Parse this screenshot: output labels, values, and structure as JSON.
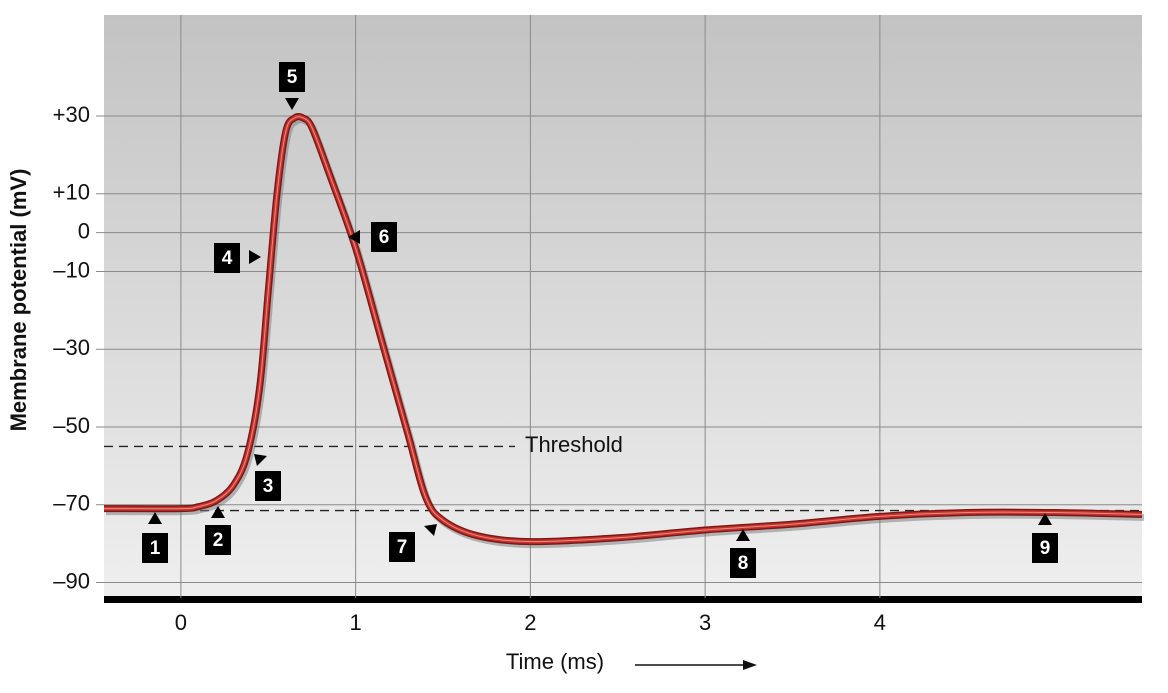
{
  "chart_data": {
    "type": "line",
    "x_label": "Time (ms)",
    "y_label": "Membrane potential (mV)",
    "x": [
      -0.44,
      0,
      0.1,
      0.2,
      0.3,
      0.38,
      0.45,
      0.5,
      0.55,
      0.6,
      0.65,
      0.7,
      0.75,
      0.85,
      1.0,
      1.15,
      1.3,
      1.4,
      1.5,
      1.7,
      2.0,
      2.5,
      3.0,
      3.5,
      4.0,
      4.5,
      5.0,
      5.5
    ],
    "values": [
      -71,
      -71,
      -70.5,
      -69,
      -65,
      -57,
      -40,
      -15,
      10,
      26,
      29.5,
      29.5,
      27,
      15,
      -4,
      -28,
      -52,
      -68,
      -74,
      -78,
      -79.5,
      -78.5,
      -76.5,
      -75,
      -73,
      -72,
      -72,
      -72.5
    ],
    "color": "#c8332e",
    "xlim": [
      -0.44,
      5.5
    ],
    "ylim": [
      -94,
      56
    ],
    "xticks": [
      0,
      1,
      2,
      3,
      4
    ],
    "yticks": [
      {
        "value": 30,
        "label": "+30"
      },
      {
        "value": 10,
        "label": "+10"
      },
      0,
      {
        "value": -10,
        "label": "–10"
      },
      {
        "value": -30,
        "label": "–30"
      },
      {
        "value": -50,
        "label": "–50"
      },
      {
        "value": -70,
        "label": "–70"
      },
      {
        "value": -90,
        "label": "–90"
      }
    ],
    "grid": true,
    "reference_lines": [
      {
        "value": -55,
        "label": "Threshold"
      },
      {
        "value": -71.5
      }
    ],
    "annotations": [
      "1",
      "2",
      "3",
      "4",
      "5",
      "6",
      "7",
      "8",
      "9"
    ]
  }
}
